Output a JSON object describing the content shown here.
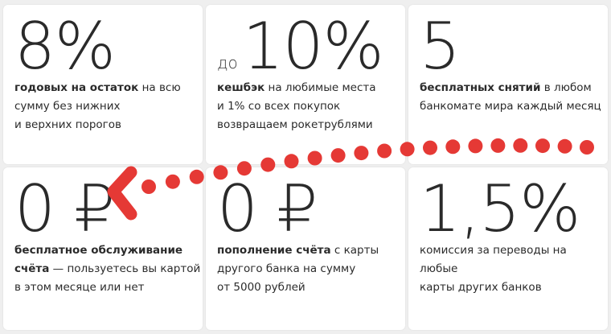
{
  "cards": [
    {
      "big": "8%",
      "pre": "",
      "bold": "годовых на остаток",
      "rest": " на всю\nсумму без нижних\nи верхних порогов"
    },
    {
      "big": "10%",
      "pre": "до",
      "bold": "кешбэк",
      "rest": " на любимые места\nи 1% со всех покупок\nвозвращаем рокетрублями"
    },
    {
      "big": "5",
      "pre": "",
      "bold": "бесплатных снятий",
      "rest": " в любом\nбанкомате мира каждый месяц"
    },
    {
      "big": "0 ₽",
      "pre": "",
      "bold": "бесплатное обслуживание\nсчёта",
      "rest": " — пользуетесь вы картой\nв этом месяце или нет"
    },
    {
      "big": "0 ₽",
      "pre": "",
      "bold": "пополнение счёта",
      "rest": " с карты\nдругого банка на сумму\nот 5000 рублей"
    },
    {
      "big": "1,5%",
      "pre": "",
      "bold": "",
      "rest": "комиссия за переводы на любые\nкарты других банков"
    }
  ],
  "decoration": {
    "dot_color": "#e53935",
    "arrow_color": "#e53935"
  }
}
